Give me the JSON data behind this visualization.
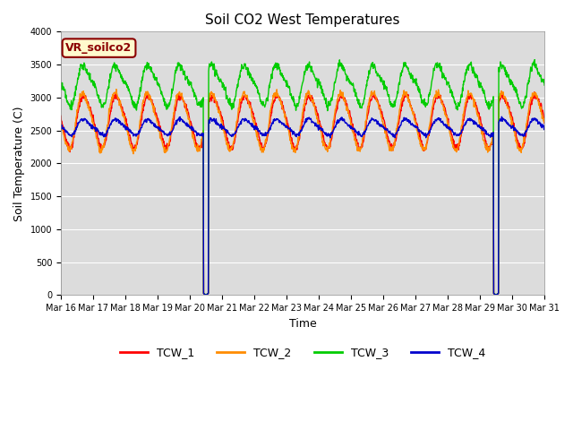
{
  "title": "Soil CO2 West Temperatures",
  "xlabel": "Time",
  "ylabel": "Soil Temperature (C)",
  "ylim": [
    0,
    4000
  ],
  "xlim": [
    0,
    15
  ],
  "x_tick_labels": [
    "Mar 16",
    "Mar 17",
    "Mar 18",
    "Mar 19",
    "Mar 20",
    "Mar 21",
    "Mar 22",
    "Mar 23",
    "Mar 24",
    "Mar 25",
    "Mar 26",
    "Mar 27",
    "Mar 28",
    "Mar 29",
    "Mar 30",
    "Mar 31"
  ],
  "x_tick_positions": [
    0,
    1,
    2,
    3,
    4,
    5,
    6,
    7,
    8,
    9,
    10,
    11,
    12,
    13,
    14,
    15
  ],
  "annotation_text": "VR_soilco2",
  "annotation_color": "#8B0000",
  "annotation_bg": "#FFFACD",
  "colors": {
    "TCW_1": "#FF0000",
    "TCW_2": "#FF8C00",
    "TCW_3": "#00CC00",
    "TCW_4": "#0000CD"
  },
  "background_color": "#DCDCDC",
  "title_fontsize": 11,
  "label_fontsize": 9,
  "tick_fontsize": 7,
  "linewidth": 1.0
}
